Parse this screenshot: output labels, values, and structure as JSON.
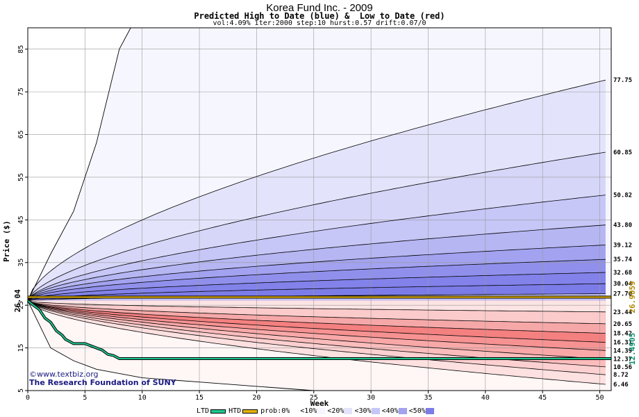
{
  "header": {
    "title": "Korea Fund Inc. - 2009",
    "subtitle": "Predicted High to Date (blue) &  Low to Date (red)",
    "params": "vol:4.09% iter:2000 step:10 hurst:0.57 drift:0.07/0"
  },
  "credit": {
    "line1": "©www.textbiz.org",
    "line2": "The Research Foundation of SUNY"
  },
  "legend": [
    {
      "label": "LTD",
      "kind": "line",
      "color": "#20c890"
    },
    {
      "label": "HTD",
      "kind": "line",
      "color": "#e6b400"
    },
    {
      "label": "prob:0%",
      "kind": "box",
      "color": "#ffffff"
    },
    {
      "label": "<10%",
      "kind": "box",
      "color": "#f6f6ff"
    },
    {
      "label": "<20%",
      "kind": "box",
      "color": "#e3e3fb"
    },
    {
      "label": "<30%",
      "kind": "box",
      "color": "#c6c6f7"
    },
    {
      "label": "<40%",
      "kind": "box",
      "color": "#a2a2f0"
    },
    {
      "label": "<50%",
      "kind": "box",
      "color": "#7c7ce8"
    }
  ],
  "chart_data": {
    "type": "area",
    "xlabel": "Week",
    "ylabel": "Price ($)",
    "xlim": [
      0,
      51
    ],
    "ylim": [
      5,
      90
    ],
    "x_ticks": [
      0,
      5,
      10,
      15,
      20,
      25,
      30,
      35,
      40,
      45,
      50
    ],
    "y_ticks": [
      5,
      15,
      25,
      35,
      45,
      55,
      65,
      75,
      85
    ],
    "grid": true,
    "start_price_label": "26.04",
    "start_price": 26.04,
    "current_high_label": "26.9059",
    "current_high": 26.9059,
    "current_low_label": "12.4905",
    "current_low": 12.4905,
    "high_bands_color": "#6060e0",
    "low_bands_color": "#f04040",
    "predicted_high_levels": [
      {
        "label": "77.75",
        "end": 77.75
      },
      {
        "label": "60.85",
        "end": 60.85
      },
      {
        "label": "50.82",
        "end": 50.82
      },
      {
        "label": "43.80",
        "end": 43.8
      },
      {
        "label": "39.12",
        "end": 39.12
      },
      {
        "label": "35.74",
        "end": 35.74
      },
      {
        "label": "32.68",
        "end": 32.68
      },
      {
        "label": "30.04",
        "end": 30.04
      },
      {
        "label": "27.70",
        "end": 27.7
      }
    ],
    "predicted_low_levels": [
      {
        "label": "23.44",
        "end": 23.44
      },
      {
        "label": "20.65",
        "end": 20.65
      },
      {
        "label": "18.42",
        "end": 18.42
      },
      {
        "label": "16.31",
        "end": 16.31
      },
      {
        "label": "14.39",
        "end": 14.39
      },
      {
        "label": "12.37",
        "end": 12.37
      },
      {
        "label": "10.56",
        "end": 10.56
      },
      {
        "label": "8.72",
        "end": 8.72
      },
      {
        "label": "6.46",
        "end": 6.46
      }
    ],
    "outer_high_envelope": {
      "x": [
        0,
        2,
        4,
        6,
        8,
        9,
        51
      ],
      "y": [
        26.04,
        37,
        47,
        63,
        85,
        90,
        90
      ]
    },
    "outer_low_envelope": {
      "x": [
        0,
        2,
        4,
        6,
        8,
        10,
        15,
        20,
        25,
        51
      ],
      "y": [
        26.04,
        15,
        12,
        10,
        9,
        8,
        7,
        6,
        5,
        5
      ]
    },
    "htd_series": {
      "name": "HTD",
      "x": [
        0,
        51
      ],
      "y": [
        26.9059,
        26.9059
      ]
    },
    "ltd_series": {
      "name": "LTD",
      "x": [
        0,
        0.5,
        1,
        1.5,
        2,
        2.5,
        3,
        3.3,
        4,
        5,
        5.5,
        6,
        6.5,
        7,
        7.5,
        8,
        9,
        15,
        20,
        30,
        40,
        51
      ],
      "y": [
        26.04,
        25,
        24,
        22,
        21,
        19,
        18,
        17,
        16,
        16,
        15.5,
        15,
        14.5,
        13.5,
        13.2,
        12.49,
        12.49,
        12.49,
        12.49,
        12.49,
        12.49,
        12.49
      ]
    }
  }
}
